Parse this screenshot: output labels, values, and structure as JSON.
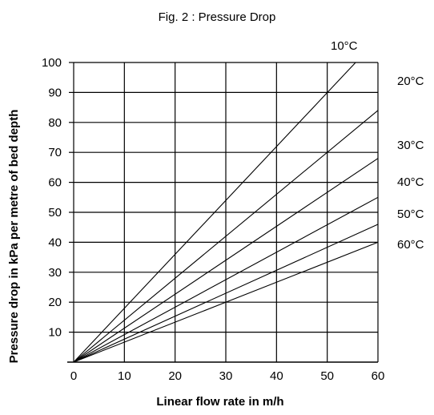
{
  "chart_data": {
    "type": "line",
    "title": "Fig. 2 : Pressure Drop",
    "xlabel": "Linear flow rate in m/h",
    "ylabel": "Pressure drop in kPa per metre of bed depth",
    "xlim": [
      0,
      60
    ],
    "ylim": [
      0,
      100
    ],
    "x_ticks": [
      "0",
      "10",
      "20",
      "30",
      "40",
      "50",
      "60"
    ],
    "y_ticks": [
      "10",
      "20",
      "30",
      "40",
      "50",
      "60",
      "70",
      "80",
      "90",
      "100"
    ],
    "grid": true,
    "legend": "right",
    "series": [
      {
        "name": "10°C",
        "x": [
          0,
          55.6
        ],
        "y": [
          0,
          100
        ]
      },
      {
        "name": "20°C",
        "x": [
          0,
          60
        ],
        "y": [
          0,
          84
        ]
      },
      {
        "name": "30°C",
        "x": [
          0,
          60
        ],
        "y": [
          0,
          68
        ]
      },
      {
        "name": "40°C",
        "x": [
          0,
          60
        ],
        "y": [
          0,
          55
        ]
      },
      {
        "name": "50°C",
        "x": [
          0,
          60
        ],
        "y": [
          0,
          46
        ]
      },
      {
        "name": "60°C",
        "x": [
          0,
          60
        ],
        "y": [
          0,
          40
        ]
      }
    ]
  }
}
